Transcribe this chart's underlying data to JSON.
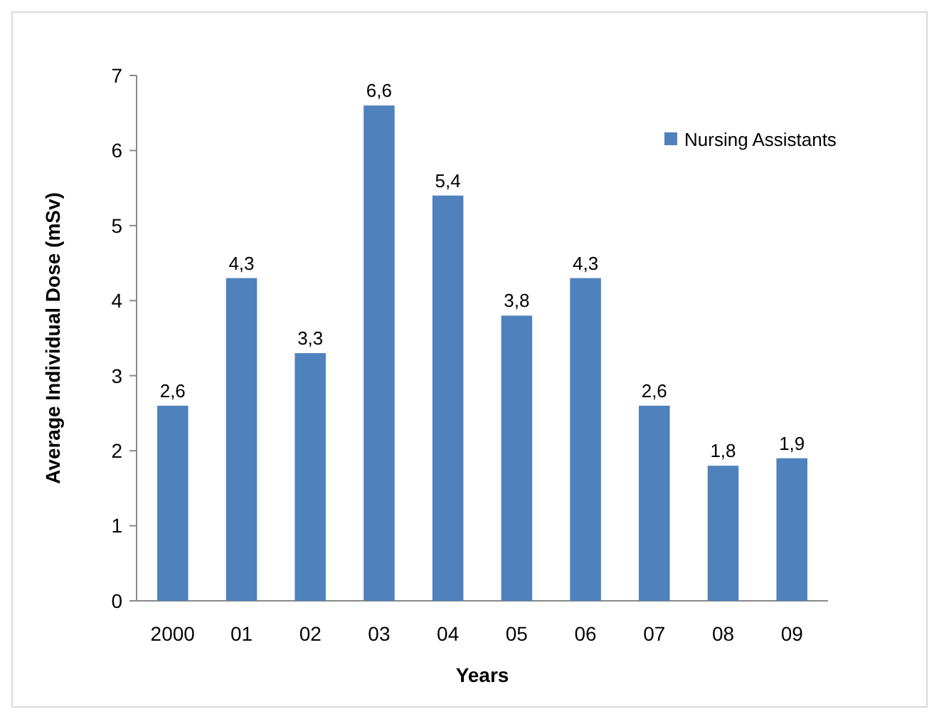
{
  "chart_data": {
    "type": "bar",
    "xlabel": "Years",
    "ylabel": "Average Individual Dose (mSv)",
    "categories": [
      "2000",
      "01",
      "02",
      "03",
      "04",
      "05",
      "06",
      "07",
      "08",
      "09"
    ],
    "series": [
      {
        "name": "Nursing Assistants",
        "color": "#4f81bd",
        "values": [
          2.6,
          4.3,
          3.3,
          6.6,
          5.4,
          3.8,
          4.3,
          2.6,
          1.8,
          1.9
        ],
        "value_labels": [
          "2,6",
          "4,3",
          "3,3",
          "6,6",
          "5,4",
          "3,8",
          "4,3",
          "2,6",
          "1,8",
          "1,9"
        ]
      }
    ],
    "ylim": [
      0,
      7
    ],
    "yticks": [
      0,
      1,
      2,
      3,
      4,
      5,
      6,
      7
    ],
    "grid": false,
    "legend": "top right"
  }
}
